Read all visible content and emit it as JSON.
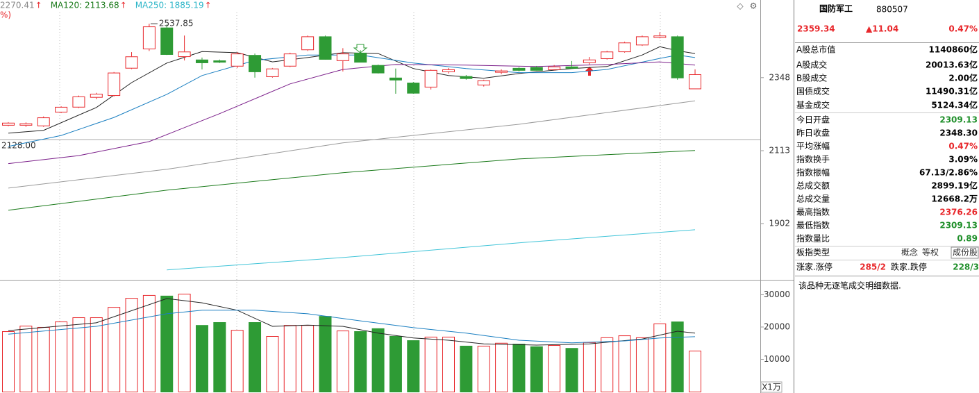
{
  "header": {
    "ma_items": [
      {
        "text": "2270.41",
        "arrow": "↑",
        "color": "#888888"
      },
      {
        "text": "MA120: 2113.68",
        "arrow": "↑",
        "color": "#1a7a1a"
      },
      {
        "text": "MA250: 1885.19",
        "arrow": "↑",
        "color": "#2bb5c8"
      }
    ],
    "unit_text": "%)"
  },
  "chart_data": [
    {
      "type": "candlestick",
      "log_scale": true,
      "ylim": [
        1759,
        2582
      ],
      "yticks": [
        2348,
        2113,
        1902
      ],
      "up_color": "#e8272b",
      "down_color": "#2e9b35",
      "open": [
        2191,
        2191,
        2189,
        2233,
        2249,
        2281,
        2287,
        2379,
        2446,
        2524,
        2419,
        2410,
        2407,
        2386,
        2426,
        2350,
        2386,
        2443,
        2492,
        2405,
        2434,
        2391,
        2348,
        2331,
        2315,
        2367,
        2353,
        2322,
        2365,
        2381,
        2384,
        2374,
        2386,
        2398,
        2412,
        2436,
        2460,
        2487,
        2492,
        2309.13
      ],
      "high": [
        2202,
        2201,
        2220,
        2253,
        2288,
        2297,
        2367,
        2436,
        2537.85,
        2535,
        2495,
        2417,
        2410,
        2436,
        2431,
        2381,
        2434,
        2495,
        2495,
        2450,
        2443,
        2393,
        2379,
        2333,
        2376,
        2381,
        2357,
        2341,
        2376,
        2384,
        2388,
        2391,
        2405,
        2419,
        2441,
        2473,
        2495,
        2507,
        2495,
        2376.26
      ],
      "low": [
        2189,
        2187,
        2187,
        2231,
        2247,
        2276,
        2285,
        2377,
        2440,
        2426,
        2407,
        2376,
        2398,
        2381,
        2348,
        2348,
        2384,
        2440,
        2410,
        2369,
        2400,
        2362,
        2294,
        2294,
        2308,
        2362,
        2341,
        2318,
        2360,
        2369,
        2372,
        2372,
        2379,
        2393,
        2410,
        2434,
        2458,
        2485,
        2341,
        2309.13
      ],
      "close": [
        2200,
        2198,
        2217,
        2251,
        2285,
        2294,
        2365,
        2421,
        2528,
        2429,
        2438,
        2400,
        2402,
        2431,
        2369,
        2379,
        2431,
        2492,
        2412,
        2431,
        2402,
        2365,
        2341,
        2297,
        2374,
        2376,
        2346,
        2339,
        2372,
        2374,
        2374,
        2386,
        2381,
        2410,
        2438,
        2470,
        2492,
        2495,
        2348.3,
        2359.34
      ],
      "high_label": "2537.85",
      "reference_line": {
        "value": 2128,
        "label": "2128.00"
      },
      "lines": [
        {
          "color": "#222222",
          "x": [
            0,
            2,
            5,
            7,
            9,
            11,
            13,
            15,
            17,
            19,
            21,
            23,
            25,
            27,
            29,
            32,
            34,
            36,
            37,
            38,
            39
          ],
          "values": [
            2167,
            2176,
            2249,
            2331,
            2398,
            2438,
            2434,
            2402,
            2417,
            2434,
            2431,
            2379,
            2355,
            2346,
            2362,
            2379,
            2386,
            2426,
            2455,
            2441,
            2431
          ]
        },
        {
          "color": "#1a7fc1",
          "x": [
            0,
            3,
            6,
            9,
            11,
            14,
            17,
            20,
            23,
            26,
            29,
            32,
            34,
            37,
            38,
            39
          ],
          "values": [
            2126,
            2160,
            2217,
            2292,
            2355,
            2407,
            2426,
            2426,
            2398,
            2379,
            2365,
            2365,
            2376,
            2414,
            2426,
            2417
          ]
        },
        {
          "color": "#7b1f8a",
          "x": [
            0,
            4,
            8,
            12,
            16,
            19,
            22,
            26,
            30,
            34,
            37,
            39
          ],
          "values": [
            2074,
            2098,
            2141,
            2229,
            2327,
            2376,
            2393,
            2391,
            2386,
            2393,
            2402,
            2391
          ]
        },
        {
          "color": "#999999",
          "x": [
            0,
            9,
            19,
            29,
            39
          ],
          "values": [
            2002,
            2057,
            2137,
            2195,
            2270.41
          ]
        },
        {
          "color": "#1a7a1a",
          "x": [
            0,
            9,
            19,
            29,
            39
          ],
          "values": [
            1939,
            1996,
            2047,
            2088,
            2113.68
          ]
        },
        {
          "color": "#40c4d8",
          "x": [
            9,
            19,
            29,
            39
          ],
          "values": [
            1779,
            1811,
            1850,
            1885.19
          ]
        }
      ]
    },
    {
      "type": "volume",
      "ylim": [
        0,
        34400
      ],
      "yticks": [
        10000,
        20000,
        30000
      ],
      "unit_label": "X1万",
      "values": [
        18700,
        20400,
        20000,
        21700,
        23000,
        23000,
        26200,
        29000,
        29900,
        29700,
        30300,
        20600,
        21500,
        19100,
        21500,
        17200,
        20600,
        20600,
        23400,
        18900,
        18700,
        19600,
        17200,
        15900,
        17000,
        17000,
        14200,
        14200,
        15100,
        14800,
        14000,
        14400,
        13500,
        15300,
        16800,
        17400,
        16800,
        21100,
        21700,
        12668.2
      ],
      "lines": [
        {
          "color": "#222222",
          "x": [
            0,
            5,
            9,
            11,
            13,
            15,
            17,
            19,
            21,
            23,
            25,
            27,
            30,
            33,
            36,
            38,
            39
          ],
          "values": [
            18900,
            21300,
            28800,
            27500,
            25200,
            20200,
            20600,
            20200,
            18100,
            16600,
            15900,
            14800,
            14400,
            14800,
            16300,
            18700,
            18100
          ]
        },
        {
          "color": "#1a7fc1",
          "x": [
            0,
            5,
            9,
            11,
            14,
            17,
            20,
            23,
            26,
            29,
            32,
            35,
            37,
            39
          ],
          "values": [
            17800,
            20200,
            24100,
            25200,
            25200,
            24100,
            21900,
            19800,
            18100,
            15900,
            15100,
            15700,
            16600,
            17000
          ]
        }
      ]
    }
  ],
  "quote_panel": {
    "name": "国防军工",
    "code": "880507",
    "price": "2359.34",
    "change": "▲11.04",
    "change_pct": "0.47%",
    "rows": [
      {
        "label": "A股总市值",
        "value": "1140860亿",
        "color": "#000000"
      },
      {
        "label": "A股成交",
        "value": "20013.63亿",
        "color": "#000000"
      },
      {
        "label": "B股成交",
        "value": "2.00亿",
        "color": "#000000"
      },
      {
        "label": "国债成交",
        "value": "11490.31亿",
        "color": "#000000"
      },
      {
        "label": "基金成交",
        "value": "5124.34亿",
        "color": "#000000"
      },
      {
        "label": "今日开盘",
        "value": "2309.13",
        "color": "#1f8f2a"
      },
      {
        "label": "昨日收盘",
        "value": "2348.30",
        "color": "#000000"
      },
      {
        "label": "平均涨幅",
        "value": "0.47%",
        "color": "#e8272b"
      },
      {
        "label": "指数换手",
        "value": "3.09%",
        "color": "#000000"
      },
      {
        "label": "指数振幅",
        "value": "67.13/2.86%",
        "color": "#000000"
      },
      {
        "label": "总成交额",
        "value": "2899.19亿",
        "color": "#000000"
      },
      {
        "label": "总成交量",
        "value": "12668.2万",
        "color": "#000000"
      },
      {
        "label": "最高指数",
        "value": "2376.26",
        "color": "#e8272b"
      },
      {
        "label": "最低指数",
        "value": "2309.13",
        "color": "#1f8f2a"
      },
      {
        "label": "指数量比",
        "value": "0.89",
        "color": "#1f8f2a"
      }
    ],
    "board_type": {
      "label": "板指类型",
      "tags": [
        "概念",
        "等权",
        "成份股"
      ]
    },
    "breadth": {
      "up_label": "涨家.涨停",
      "up_value": "285/2",
      "down_label": "跌家.跌停",
      "down_value": "228/3"
    },
    "note": "该品种无逐笔成交明细数据."
  }
}
